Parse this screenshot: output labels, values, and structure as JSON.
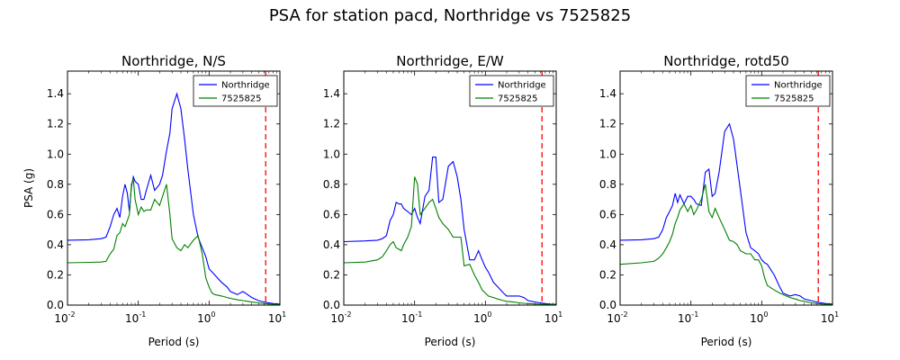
{
  "figure": {
    "title": "PSA for station pacd, Northridge vs 7525825"
  },
  "chart_data": [
    {
      "type": "line",
      "title": "Northridge, N/S",
      "xlabel": "Period (s)",
      "ylabel": "PSA (g)",
      "xscale": "log",
      "xlim": [
        0.01,
        10
      ],
      "ylim": [
        0,
        1.55
      ],
      "xticks": [
        {
          "v": 0.01,
          "label": "10",
          "exp": "-2"
        },
        {
          "v": 0.1,
          "label": "10",
          "exp": "-1"
        },
        {
          "v": 1,
          "label": "10",
          "exp": "0"
        },
        {
          "v": 10,
          "label": "10",
          "exp": "1"
        }
      ],
      "yticks": [
        "0.0",
        "0.2",
        "0.4",
        "0.6",
        "0.8",
        "1.0",
        "1.2",
        "1.4"
      ],
      "grid": false,
      "legend": "top-right",
      "vline": {
        "x": 6.3,
        "color": "#ff0000",
        "style": "dashed"
      },
      "series": [
        {
          "name": "Northridge",
          "color": "#0000ff",
          "x": [
            0.01,
            0.02,
            0.03,
            0.035,
            0.04,
            0.045,
            0.05,
            0.055,
            0.06,
            0.065,
            0.07,
            0.075,
            0.08,
            0.085,
            0.09,
            0.1,
            0.11,
            0.12,
            0.13,
            0.15,
            0.17,
            0.2,
            0.22,
            0.25,
            0.28,
            0.3,
            0.35,
            0.4,
            0.45,
            0.5,
            0.6,
            0.7,
            0.8,
            0.9,
            1.0,
            1.1,
            1.2,
            1.5,
            1.8,
            2.0,
            2.5,
            3.0,
            3.5,
            4.0,
            5.0,
            6.0,
            7.0,
            8.0,
            10.0
          ],
          "y": [
            0.43,
            0.433,
            0.44,
            0.45,
            0.52,
            0.6,
            0.64,
            0.58,
            0.72,
            0.8,
            0.74,
            0.62,
            0.78,
            0.85,
            0.82,
            0.8,
            0.7,
            0.7,
            0.76,
            0.86,
            0.76,
            0.8,
            0.86,
            1.02,
            1.14,
            1.3,
            1.4,
            1.3,
            1.1,
            0.9,
            0.6,
            0.45,
            0.38,
            0.32,
            0.24,
            0.22,
            0.2,
            0.15,
            0.12,
            0.09,
            0.07,
            0.09,
            0.07,
            0.05,
            0.03,
            0.02,
            0.015,
            0.01,
            0.007
          ]
        },
        {
          "name": "7525825",
          "color": "#008000",
          "x": [
            0.01,
            0.02,
            0.03,
            0.035,
            0.04,
            0.045,
            0.05,
            0.055,
            0.06,
            0.065,
            0.07,
            0.075,
            0.08,
            0.085,
            0.09,
            0.1,
            0.11,
            0.12,
            0.13,
            0.15,
            0.17,
            0.2,
            0.22,
            0.25,
            0.28,
            0.3,
            0.35,
            0.4,
            0.45,
            0.5,
            0.6,
            0.7,
            0.8,
            0.9,
            1.0,
            1.1,
            1.2,
            1.5,
            1.8,
            2.0,
            2.5,
            3.0,
            3.5,
            4.0,
            5.0,
            6.0,
            7.0,
            8.0,
            10.0
          ],
          "y": [
            0.28,
            0.283,
            0.285,
            0.29,
            0.34,
            0.37,
            0.46,
            0.48,
            0.54,
            0.52,
            0.56,
            0.6,
            0.8,
            0.84,
            0.7,
            0.6,
            0.65,
            0.62,
            0.63,
            0.63,
            0.7,
            0.66,
            0.72,
            0.8,
            0.6,
            0.44,
            0.38,
            0.36,
            0.4,
            0.38,
            0.43,
            0.46,
            0.34,
            0.18,
            0.12,
            0.08,
            0.07,
            0.06,
            0.05,
            0.045,
            0.035,
            0.03,
            0.025,
            0.02,
            0.015,
            0.01,
            0.008,
            0.006,
            0.004
          ]
        }
      ]
    },
    {
      "type": "line",
      "title": "Northridge, E/W",
      "xlabel": "Period (s)",
      "ylabel": "",
      "xscale": "log",
      "xlim": [
        0.01,
        10
      ],
      "ylim": [
        0,
        1.55
      ],
      "xticks": [
        {
          "v": 0.01,
          "label": "10",
          "exp": "-2"
        },
        {
          "v": 0.1,
          "label": "10",
          "exp": "-1"
        },
        {
          "v": 1,
          "label": "10",
          "exp": "0"
        },
        {
          "v": 10,
          "label": "10",
          "exp": "1"
        }
      ],
      "yticks": [
        "0.0",
        "0.2",
        "0.4",
        "0.6",
        "0.8",
        "1.0",
        "1.2",
        "1.4"
      ],
      "grid": false,
      "legend": "top-right",
      "vline": {
        "x": 6.3,
        "color": "#ff0000",
        "style": "dashed"
      },
      "series": [
        {
          "name": "Northridge",
          "color": "#0000ff",
          "x": [
            0.01,
            0.02,
            0.03,
            0.035,
            0.04,
            0.045,
            0.05,
            0.055,
            0.06,
            0.065,
            0.07,
            0.08,
            0.09,
            0.1,
            0.11,
            0.12,
            0.14,
            0.16,
            0.18,
            0.2,
            0.22,
            0.25,
            0.3,
            0.35,
            0.4,
            0.45,
            0.5,
            0.6,
            0.7,
            0.8,
            0.9,
            1.0,
            1.1,
            1.3,
            1.5,
            1.8,
            2.0,
            2.5,
            3.0,
            3.5,
            4.0,
            5.0,
            6.0,
            7.0,
            8.0,
            10.0
          ],
          "y": [
            0.42,
            0.425,
            0.43,
            0.44,
            0.46,
            0.56,
            0.6,
            0.68,
            0.67,
            0.67,
            0.64,
            0.62,
            0.6,
            0.64,
            0.58,
            0.54,
            0.72,
            0.76,
            0.98,
            0.98,
            0.68,
            0.7,
            0.92,
            0.95,
            0.85,
            0.7,
            0.5,
            0.3,
            0.3,
            0.36,
            0.3,
            0.25,
            0.22,
            0.15,
            0.12,
            0.08,
            0.06,
            0.06,
            0.06,
            0.05,
            0.03,
            0.02,
            0.015,
            0.01,
            0.007,
            0.005
          ]
        },
        {
          "name": "7525825",
          "color": "#008000",
          "x": [
            0.01,
            0.02,
            0.03,
            0.035,
            0.04,
            0.045,
            0.05,
            0.055,
            0.06,
            0.065,
            0.07,
            0.08,
            0.09,
            0.1,
            0.11,
            0.12,
            0.14,
            0.16,
            0.18,
            0.2,
            0.22,
            0.25,
            0.3,
            0.35,
            0.4,
            0.45,
            0.5,
            0.6,
            0.7,
            0.8,
            0.9,
            1.0,
            1.1,
            1.3,
            1.5,
            1.8,
            2.0,
            2.5,
            3.0,
            3.5,
            4.0,
            5.0,
            6.0,
            7.0,
            8.0,
            10.0
          ],
          "y": [
            0.28,
            0.285,
            0.3,
            0.32,
            0.36,
            0.4,
            0.42,
            0.38,
            0.37,
            0.36,
            0.4,
            0.45,
            0.52,
            0.85,
            0.8,
            0.6,
            0.64,
            0.68,
            0.7,
            0.64,
            0.58,
            0.54,
            0.5,
            0.45,
            0.45,
            0.45,
            0.26,
            0.27,
            0.2,
            0.15,
            0.1,
            0.08,
            0.06,
            0.05,
            0.04,
            0.03,
            0.025,
            0.02,
            0.015,
            0.012,
            0.01,
            0.008,
            0.006,
            0.005,
            0.004,
            0.003
          ]
        }
      ]
    },
    {
      "type": "line",
      "title": "Northridge, rotd50",
      "xlabel": "Period (s)",
      "ylabel": "",
      "xscale": "log",
      "xlim": [
        0.01,
        10
      ],
      "ylim": [
        0,
        1.55
      ],
      "xticks": [
        {
          "v": 0.01,
          "label": "10",
          "exp": "-2"
        },
        {
          "v": 0.1,
          "label": "10",
          "exp": "-1"
        },
        {
          "v": 1,
          "label": "10",
          "exp": "0"
        },
        {
          "v": 10,
          "label": "10",
          "exp": "1"
        }
      ],
      "yticks": [
        "0.0",
        "0.2",
        "0.4",
        "0.6",
        "0.8",
        "1.0",
        "1.2",
        "1.4"
      ],
      "grid": false,
      "legend": "top-right",
      "vline": {
        "x": 6.3,
        "color": "#ff0000",
        "style": "dashed"
      },
      "series": [
        {
          "name": "Northridge",
          "color": "#0000ff",
          "x": [
            0.01,
            0.02,
            0.03,
            0.035,
            0.04,
            0.045,
            0.05,
            0.055,
            0.06,
            0.065,
            0.07,
            0.08,
            0.09,
            0.1,
            0.11,
            0.12,
            0.14,
            0.16,
            0.18,
            0.2,
            0.22,
            0.25,
            0.3,
            0.35,
            0.4,
            0.45,
            0.5,
            0.6,
            0.7,
            0.8,
            0.9,
            1.0,
            1.1,
            1.2,
            1.5,
            1.8,
            2.0,
            2.5,
            3.0,
            3.5,
            4.0,
            5.0,
            6.0,
            7.0,
            8.0,
            10.0
          ],
          "y": [
            0.43,
            0.433,
            0.44,
            0.45,
            0.5,
            0.58,
            0.62,
            0.66,
            0.74,
            0.68,
            0.73,
            0.67,
            0.72,
            0.72,
            0.7,
            0.67,
            0.66,
            0.88,
            0.9,
            0.72,
            0.74,
            0.88,
            1.15,
            1.2,
            1.1,
            0.92,
            0.76,
            0.48,
            0.38,
            0.36,
            0.34,
            0.3,
            0.28,
            0.27,
            0.2,
            0.12,
            0.08,
            0.06,
            0.07,
            0.06,
            0.04,
            0.03,
            0.02,
            0.015,
            0.01,
            0.007
          ]
        },
        {
          "name": "7525825",
          "color": "#008000",
          "x": [
            0.01,
            0.02,
            0.03,
            0.035,
            0.04,
            0.045,
            0.05,
            0.055,
            0.06,
            0.065,
            0.07,
            0.08,
            0.09,
            0.1,
            0.11,
            0.12,
            0.14,
            0.16,
            0.18,
            0.2,
            0.22,
            0.25,
            0.3,
            0.35,
            0.4,
            0.45,
            0.5,
            0.6,
            0.7,
            0.8,
            0.9,
            1.0,
            1.1,
            1.2,
            1.5,
            1.8,
            2.0,
            2.5,
            3.0,
            3.5,
            4.0,
            5.0,
            6.0,
            7.0,
            8.0,
            10.0
          ],
          "y": [
            0.27,
            0.28,
            0.29,
            0.31,
            0.34,
            0.38,
            0.42,
            0.47,
            0.54,
            0.58,
            0.63,
            0.67,
            0.62,
            0.66,
            0.6,
            0.63,
            0.7,
            0.8,
            0.62,
            0.58,
            0.64,
            0.58,
            0.5,
            0.43,
            0.42,
            0.4,
            0.36,
            0.34,
            0.34,
            0.3,
            0.3,
            0.26,
            0.18,
            0.13,
            0.1,
            0.08,
            0.07,
            0.05,
            0.04,
            0.03,
            0.025,
            0.015,
            0.01,
            0.008,
            0.006,
            0.004
          ]
        }
      ]
    }
  ]
}
